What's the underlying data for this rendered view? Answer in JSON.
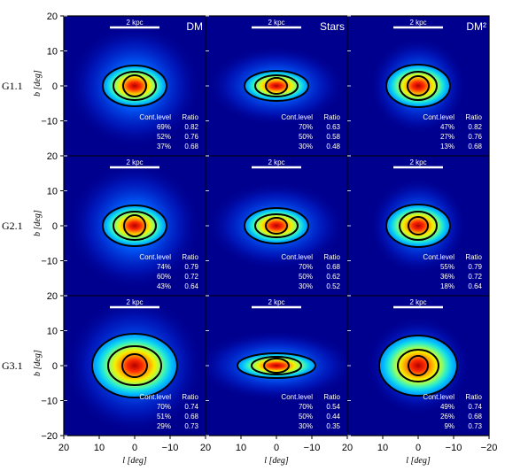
{
  "colors": {
    "background_dark": "#00008f",
    "frame": "#000000",
    "scalebar": "#ffffff",
    "contour": "#000000"
  },
  "chart_data": {
    "type": "heatmap",
    "description_axes": {
      "xlabel": "l [deg]",
      "ylabel": "b [deg]",
      "xlim": [
        20,
        -20
      ],
      "ylim": [
        -20,
        20
      ],
      "xticks": [
        "20",
        "10",
        "0",
        "−10",
        "−20"
      ],
      "yticks": [
        "20",
        "10",
        "0",
        "−10",
        "−20"
      ]
    },
    "columns": [
      "DM",
      "Stars",
      "DM²"
    ],
    "rows": [
      "G1.1",
      "G2.1",
      "G3.1"
    ],
    "scalebar_label": "2 kpc",
    "table_headers": [
      "Cont.level",
      "Ratio"
    ],
    "panels": [
      {
        "row": "G1.1",
        "col": "DM",
        "levels": [
          "69%",
          "52%",
          "37%"
        ],
        "ratios": [
          "0.82",
          "0.76",
          "0.68"
        ]
      },
      {
        "row": "G1.1",
        "col": "Stars",
        "levels": [
          "70%",
          "50%",
          "30%"
        ],
        "ratios": [
          "0.63",
          "0.58",
          "0.48"
        ]
      },
      {
        "row": "G1.1",
        "col": "DM²",
        "levels": [
          "47%",
          "27%",
          "13%"
        ],
        "ratios": [
          "0.82",
          "0.76",
          "0.68"
        ]
      },
      {
        "row": "G2.1",
        "col": "DM",
        "levels": [
          "74%",
          "60%",
          "43%"
        ],
        "ratios": [
          "0.79",
          "0.72",
          "0.64"
        ]
      },
      {
        "row": "G2.1",
        "col": "Stars",
        "levels": [
          "70%",
          "50%",
          "30%"
        ],
        "ratios": [
          "0.68",
          "0.62",
          "0.52"
        ]
      },
      {
        "row": "G2.1",
        "col": "DM²",
        "levels": [
          "55%",
          "36%",
          "18%"
        ],
        "ratios": [
          "0.79",
          "0.72",
          "0.64"
        ]
      },
      {
        "row": "G3.1",
        "col": "DM",
        "levels": [
          "70%",
          "51%",
          "29%"
        ],
        "ratios": [
          "0.74",
          "0.68",
          "0.73"
        ]
      },
      {
        "row": "G3.1",
        "col": "Stars",
        "levels": [
          "70%",
          "50%",
          "30%"
        ],
        "ratios": [
          "0.54",
          "0.44",
          "0.35"
        ]
      },
      {
        "row": "G3.1",
        "col": "DM²",
        "levels": [
          "49%",
          "26%",
          "9%"
        ],
        "ratios": [
          "0.74",
          "0.68",
          "0.73"
        ]
      }
    ]
  }
}
